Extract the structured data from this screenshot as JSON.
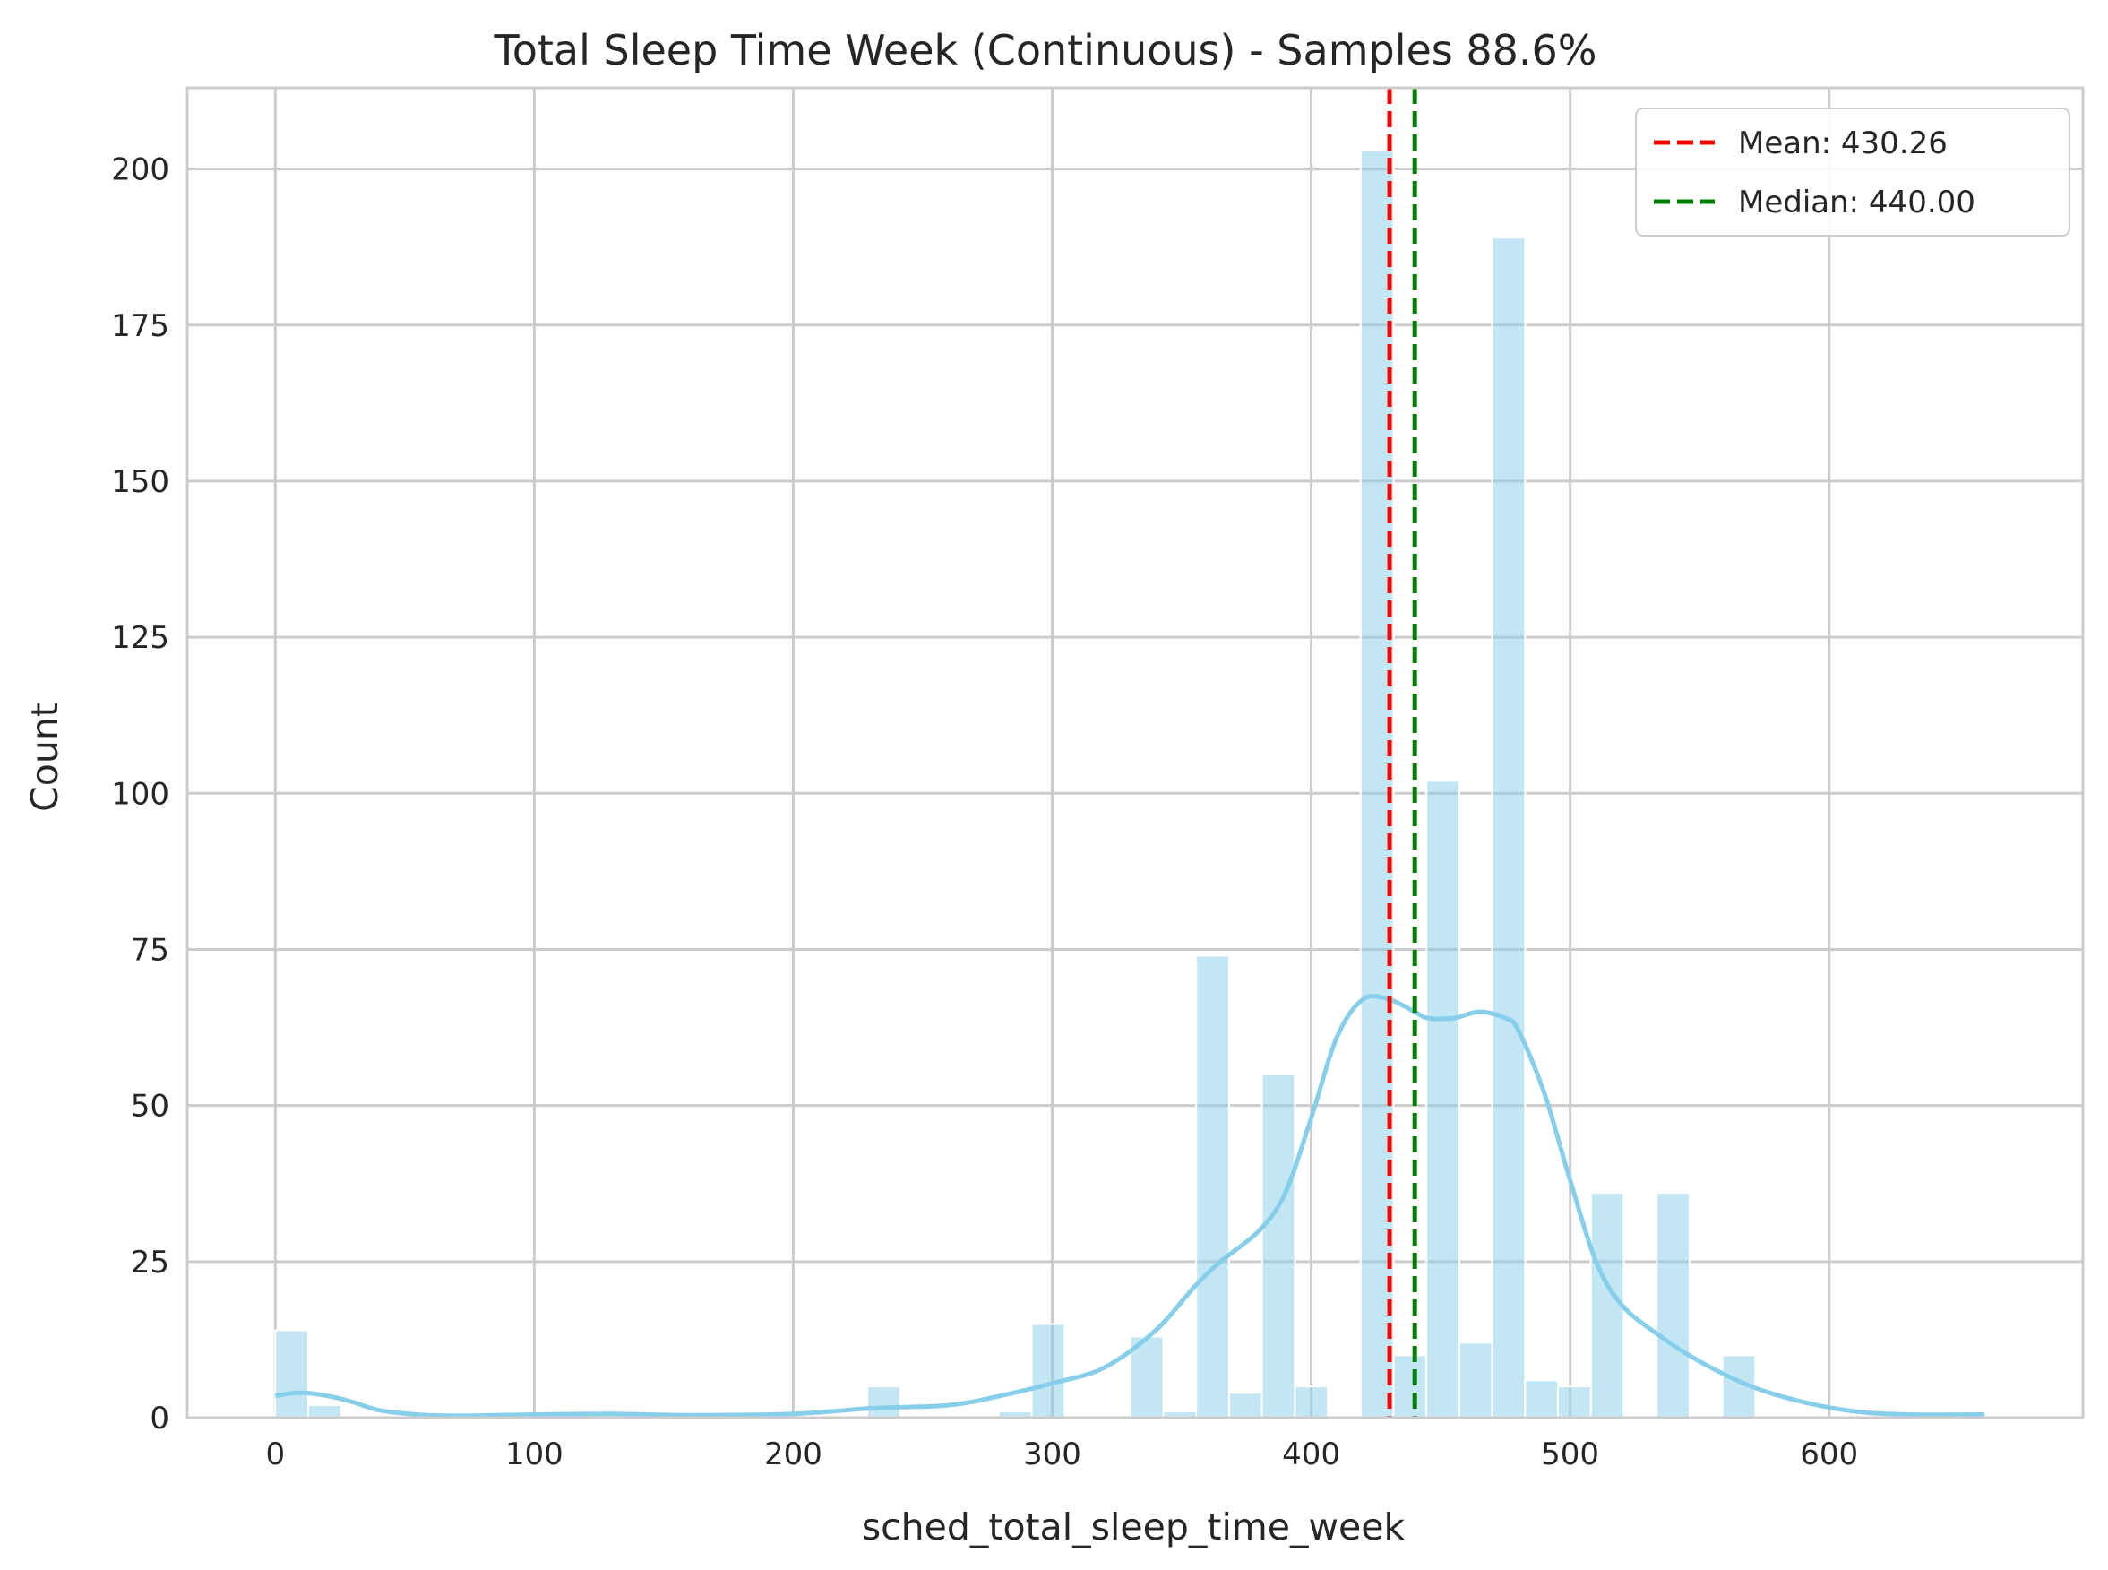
{
  "chart_data": {
    "type": "bar",
    "title": "Total Sleep Time Week (Continuous) - Samples 88.6%",
    "xlabel": "sched_total_sleep_time_week",
    "ylabel": "Count",
    "xlim": [
      -34,
      698
    ],
    "ylim": [
      0,
      213
    ],
    "xticks": [
      0,
      100,
      200,
      300,
      400,
      500,
      600
    ],
    "yticks": [
      0,
      25,
      50,
      75,
      100,
      125,
      150,
      175,
      200
    ],
    "grid": true,
    "legend_position": "top-right",
    "bar_color": "#87ceeb",
    "bins": [
      {
        "x0": 0,
        "x1": 12.7,
        "count": 14
      },
      {
        "x0": 12.7,
        "x1": 25.4,
        "count": 2
      },
      {
        "x0": 228.6,
        "x1": 241.3,
        "count": 5
      },
      {
        "x0": 279.4,
        "x1": 292.1,
        "count": 1
      },
      {
        "x0": 292.1,
        "x1": 304.8,
        "count": 15
      },
      {
        "x0": 330.2,
        "x1": 342.9,
        "count": 13
      },
      {
        "x0": 342.9,
        "x1": 355.6,
        "count": 1
      },
      {
        "x0": 355.6,
        "x1": 368.3,
        "count": 74
      },
      {
        "x0": 368.3,
        "x1": 381.0,
        "count": 4
      },
      {
        "x0": 381.0,
        "x1": 393.7,
        "count": 55
      },
      {
        "x0": 393.7,
        "x1": 406.4,
        "count": 5
      },
      {
        "x0": 419.1,
        "x1": 431.8,
        "count": 203
      },
      {
        "x0": 431.8,
        "x1": 444.5,
        "count": 10
      },
      {
        "x0": 444.5,
        "x1": 457.2,
        "count": 102
      },
      {
        "x0": 457.2,
        "x1": 469.9,
        "count": 12
      },
      {
        "x0": 469.9,
        "x1": 482.6,
        "count": 189
      },
      {
        "x0": 482.6,
        "x1": 495.3,
        "count": 6
      },
      {
        "x0": 495.3,
        "x1": 508.0,
        "count": 5
      },
      {
        "x0": 508.0,
        "x1": 520.7,
        "count": 36
      },
      {
        "x0": 533.4,
        "x1": 546.1,
        "count": 36
      },
      {
        "x0": 558.8,
        "x1": 571.5,
        "count": 10
      },
      {
        "x0": 647.7,
        "x1": 660.4,
        "count": 1
      }
    ],
    "kde": {
      "color": "#87ceeb",
      "x": [
        0,
        10,
        20,
        30,
        40,
        55,
        70,
        100,
        130,
        160,
        200,
        230,
        260,
        280,
        300,
        320,
        340,
        355,
        365,
        380,
        390,
        400,
        410,
        420,
        430,
        440,
        445,
        455,
        465,
        475,
        480,
        490,
        500,
        510,
        520,
        535,
        550,
        570,
        590,
        610,
        630,
        660
      ],
      "y": [
        3.5,
        4,
        3.5,
        2.5,
        1.2,
        0.5,
        0.3,
        0.5,
        0.6,
        0.4,
        0.6,
        1.5,
        2,
        3.5,
        5.5,
        8,
        14,
        21,
        25,
        30,
        36,
        48,
        61,
        67,
        67,
        65,
        64,
        64,
        65,
        64,
        62,
        52,
        38,
        25,
        18,
        13,
        9,
        5,
        2.5,
        1,
        0.5,
        0.5
      ]
    },
    "lines": [
      {
        "name": "Mean: 430.26",
        "x": 430.26,
        "color": "#ff0000",
        "style": "dashed"
      },
      {
        "name": "Median: 440.00",
        "x": 440.0,
        "color": "#008000",
        "style": "dashed"
      }
    ]
  }
}
